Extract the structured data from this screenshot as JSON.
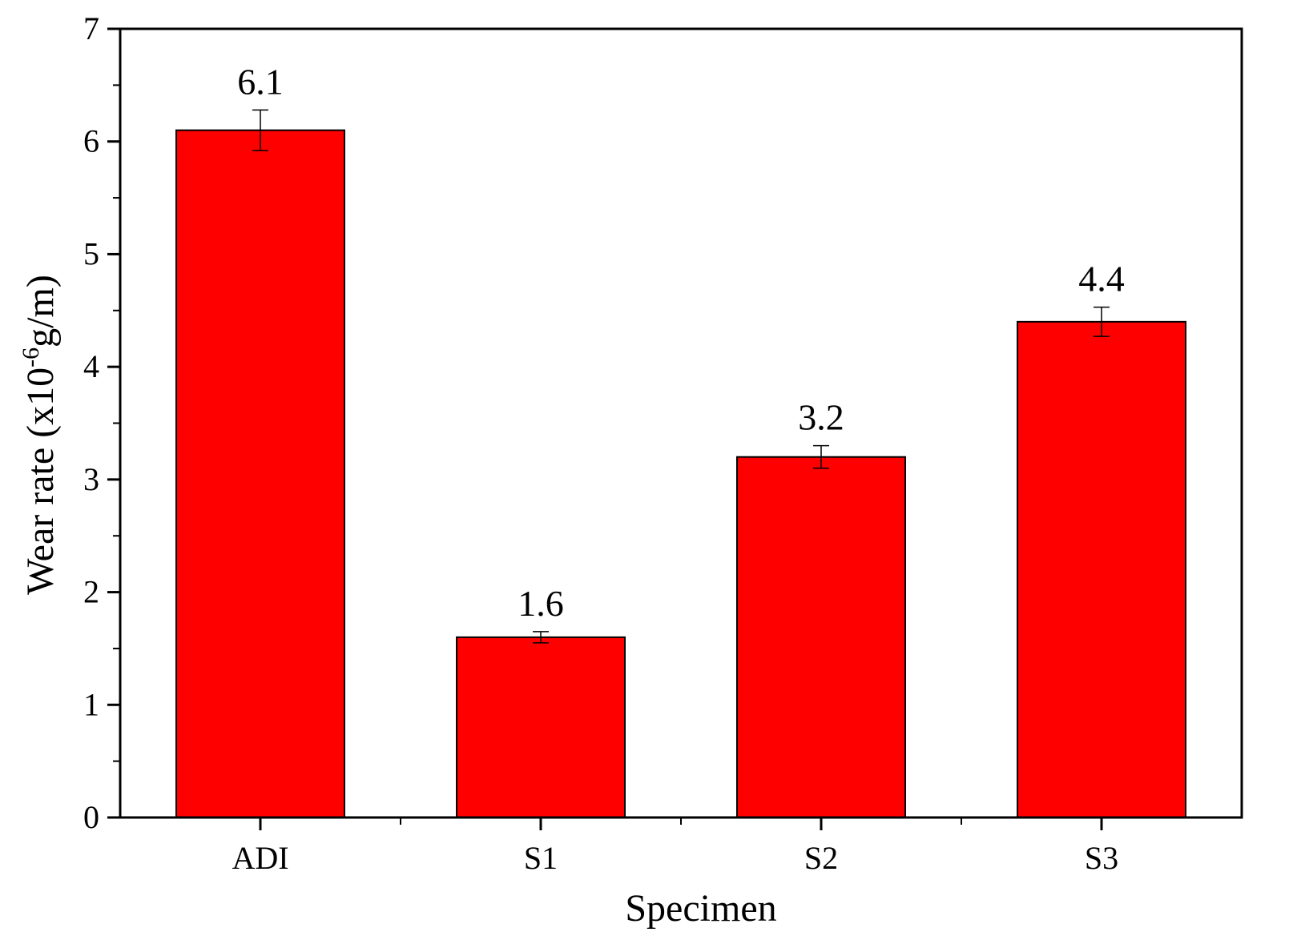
{
  "chart_data": {
    "type": "bar",
    "categories": [
      "ADI",
      "S1",
      "S2",
      "S3"
    ],
    "values": [
      6.1,
      1.6,
      3.2,
      4.4
    ],
    "error": [
      0.18,
      0.05,
      0.1,
      0.13
    ],
    "data_labels": [
      "6.1",
      "1.6",
      "3.2",
      "4.4"
    ],
    "title": "",
    "xlabel": "Specimen",
    "ylabel_main": "Wear rate (x10",
    "ylabel_sup": "-6",
    "ylabel_tail": "g/m)",
    "ylim": [
      0,
      7
    ],
    "yticks": [
      0,
      1,
      2,
      3,
      4,
      5,
      6,
      7
    ],
    "grid": false,
    "legend": "none",
    "bar_color": "#ff0000",
    "bar_edge_color": "#000000"
  }
}
